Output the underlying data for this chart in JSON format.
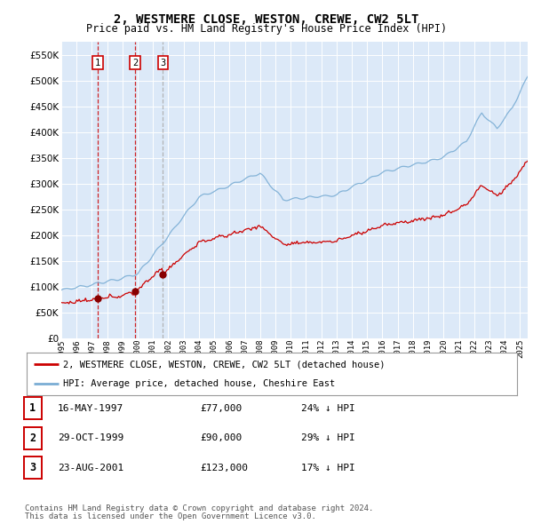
{
  "title": "2, WESTMERE CLOSE, WESTON, CREWE, CW2 5LT",
  "subtitle": "Price paid vs. HM Land Registry's House Price Index (HPI)",
  "background_color": "#ffffff",
  "plot_bg_color": "#dce9f8",
  "grid_color": "#ffffff",
  "red_line_color": "#cc0000",
  "blue_line_color": "#7aadd4",
  "sale_marker_color": "#880000",
  "ylim": [
    0,
    575000
  ],
  "yticks": [
    0,
    50000,
    100000,
    150000,
    200000,
    250000,
    300000,
    350000,
    400000,
    450000,
    500000,
    550000
  ],
  "sale_year_nums": [
    1997.375,
    1999.831,
    2001.644
  ],
  "sale_prices": [
    77000,
    90000,
    123000
  ],
  "sale_labels": [
    "1",
    "2",
    "3"
  ],
  "sale_vline_colors": [
    "#cc0000",
    "#cc0000",
    "#aaaaaa"
  ],
  "footer_line1": "Contains HM Land Registry data © Crown copyright and database right 2024.",
  "footer_line2": "This data is licensed under the Open Government Licence v3.0.",
  "legend_entry1": "2, WESTMERE CLOSE, WESTON, CREWE, CW2 5LT (detached house)",
  "legend_entry2": "HPI: Average price, detached house, Cheshire East",
  "table_rows": [
    [
      "1",
      "16-MAY-1997",
      "£77,000",
      "24% ↓ HPI"
    ],
    [
      "2",
      "29-OCT-1999",
      "£90,000",
      "29% ↓ HPI"
    ],
    [
      "3",
      "23-AUG-2001",
      "£123,000",
      "17% ↓ HPI"
    ]
  ]
}
